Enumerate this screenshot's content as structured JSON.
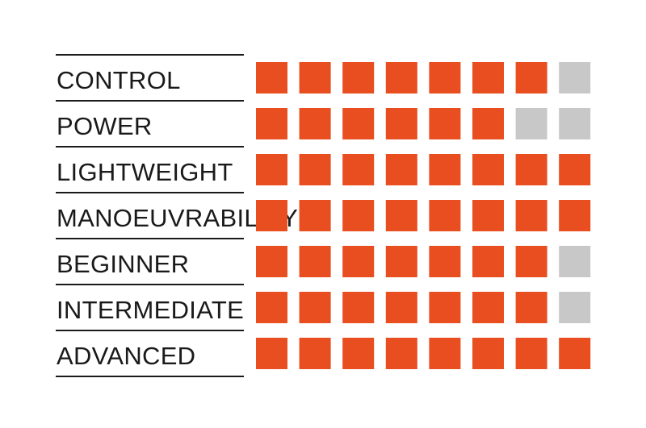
{
  "chart_data": {
    "type": "rating-grid",
    "scale_max": 8,
    "filled_color": "#E84E1F",
    "empty_color": "#C8C8C8",
    "rows": [
      {
        "label": "CONTROL",
        "value": 7
      },
      {
        "label": "POWER",
        "value": 6
      },
      {
        "label": "LIGHTWEIGHT",
        "value": 8
      },
      {
        "label": "MANOEUVRABILITY",
        "value": 8
      },
      {
        "label": "BEGINNER",
        "value": 7
      },
      {
        "label": "INTERMEDIATE",
        "value": 7
      },
      {
        "label": "ADVANCED",
        "value": 8
      }
    ]
  }
}
